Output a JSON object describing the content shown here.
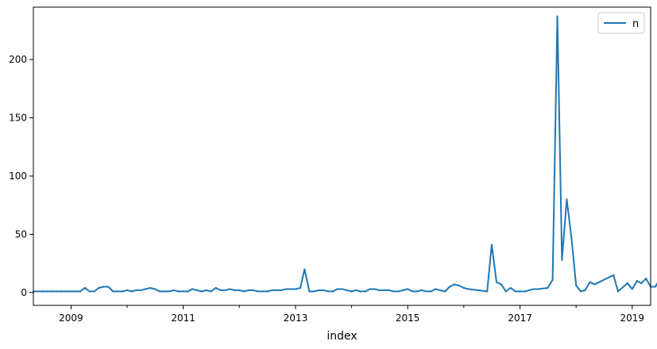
{
  "chart_data": {
    "type": "line",
    "xlabel": "index",
    "ylabel": "",
    "title": "",
    "xlim": [
      "2008-05-01",
      "2019-05-01"
    ],
    "ylim": [
      -11,
      245
    ],
    "x_tick_labels": [
      "2009",
      "2011",
      "2013",
      "2015",
      "2017",
      "2019"
    ],
    "y_ticks": [
      0,
      50,
      100,
      150,
      200
    ],
    "legend": {
      "placement": "upper-right",
      "entries": [
        "n"
      ]
    },
    "grid": false,
    "series": [
      {
        "name": "n",
        "color": "#1f77b4",
        "points": [
          [
            "2008-05-01",
            1
          ],
          [
            "2008-06-01",
            1
          ],
          [
            "2008-07-01",
            1
          ],
          [
            "2008-08-01",
            1
          ],
          [
            "2008-09-01",
            1
          ],
          [
            "2008-10-01",
            1
          ],
          [
            "2008-11-01",
            1
          ],
          [
            "2008-12-01",
            1
          ],
          [
            "2009-01-01",
            1
          ],
          [
            "2009-02-01",
            1
          ],
          [
            "2009-03-01",
            1
          ],
          [
            "2009-04-01",
            4
          ],
          [
            "2009-05-01",
            1
          ],
          [
            "2009-06-01",
            1
          ],
          [
            "2009-07-01",
            4
          ],
          [
            "2009-08-01",
            5
          ],
          [
            "2009-09-01",
            5
          ],
          [
            "2009-10-01",
            1
          ],
          [
            "2009-11-01",
            1
          ],
          [
            "2009-12-01",
            1
          ],
          [
            "2010-01-01",
            2
          ],
          [
            "2010-02-01",
            1
          ],
          [
            "2010-03-01",
            2
          ],
          [
            "2010-04-01",
            2
          ],
          [
            "2010-05-01",
            3
          ],
          [
            "2010-06-01",
            4
          ],
          [
            "2010-07-01",
            3
          ],
          [
            "2010-08-01",
            1
          ],
          [
            "2010-09-01",
            1
          ],
          [
            "2010-10-01",
            1
          ],
          [
            "2010-11-01",
            2
          ],
          [
            "2010-12-01",
            1
          ],
          [
            "2011-01-01",
            1
          ],
          [
            "2011-02-01",
            1
          ],
          [
            "2011-03-01",
            3
          ],
          [
            "2011-04-01",
            2
          ],
          [
            "2011-05-01",
            1
          ],
          [
            "2011-06-01",
            2
          ],
          [
            "2011-07-01",
            1
          ],
          [
            "2011-08-01",
            4
          ],
          [
            "2011-09-01",
            2
          ],
          [
            "2011-10-01",
            2
          ],
          [
            "2011-11-01",
            3
          ],
          [
            "2011-12-01",
            2
          ],
          [
            "2012-01-01",
            2
          ],
          [
            "2012-02-01",
            1
          ],
          [
            "2012-03-01",
            2
          ],
          [
            "2012-04-01",
            2
          ],
          [
            "2012-05-01",
            1
          ],
          [
            "2012-06-01",
            1
          ],
          [
            "2012-07-01",
            1
          ],
          [
            "2012-08-01",
            2
          ],
          [
            "2012-09-01",
            2
          ],
          [
            "2012-10-01",
            2
          ],
          [
            "2012-11-01",
            3
          ],
          [
            "2012-12-01",
            3
          ],
          [
            "2013-01-01",
            3
          ],
          [
            "2013-02-01",
            4
          ],
          [
            "2013-03-01",
            20
          ],
          [
            "2013-04-01",
            1
          ],
          [
            "2013-05-01",
            1
          ],
          [
            "2013-06-01",
            2
          ],
          [
            "2013-07-01",
            2
          ],
          [
            "2013-08-01",
            1
          ],
          [
            "2013-09-01",
            1
          ],
          [
            "2013-10-01",
            3
          ],
          [
            "2013-11-01",
            3
          ],
          [
            "2013-12-01",
            2
          ],
          [
            "2014-01-01",
            1
          ],
          [
            "2014-02-01",
            2
          ],
          [
            "2014-03-01",
            1
          ],
          [
            "2014-04-01",
            1
          ],
          [
            "2014-05-01",
            3
          ],
          [
            "2014-06-01",
            3
          ],
          [
            "2014-07-01",
            2
          ],
          [
            "2014-08-01",
            2
          ],
          [
            "2014-09-01",
            2
          ],
          [
            "2014-10-01",
            1
          ],
          [
            "2014-11-01",
            1
          ],
          [
            "2014-12-01",
            2
          ],
          [
            "2015-01-01",
            3
          ],
          [
            "2015-02-01",
            1
          ],
          [
            "2015-03-01",
            1
          ],
          [
            "2015-04-01",
            2
          ],
          [
            "2015-05-01",
            1
          ],
          [
            "2015-06-01",
            1
          ],
          [
            "2015-07-01",
            3
          ],
          [
            "2015-08-01",
            2
          ],
          [
            "2015-09-01",
            1
          ],
          [
            "2015-10-01",
            5
          ],
          [
            "2015-11-01",
            7
          ],
          [
            "2015-12-01",
            6
          ],
          [
            "2016-01-01",
            4
          ],
          [
            "2016-02-01",
            3
          ],
          [
            "2016-04-01",
            2
          ],
          [
            "2016-06-01",
            1
          ],
          [
            "2016-07-01",
            41
          ],
          [
            "2016-08-01",
            9
          ],
          [
            "2016-09-01",
            7
          ],
          [
            "2016-10-01",
            1
          ],
          [
            "2016-11-01",
            4
          ],
          [
            "2016-12-01",
            1
          ],
          [
            "2017-01-01",
            1
          ],
          [
            "2017-02-01",
            1
          ],
          [
            "2017-03-01",
            2
          ],
          [
            "2017-04-01",
            3
          ],
          [
            "2017-05-01",
            3
          ],
          [
            "2017-07-01",
            4
          ],
          [
            "2017-08-01",
            11
          ],
          [
            "2017-09-01",
            237
          ],
          [
            "2017-10-01",
            28
          ],
          [
            "2017-11-01",
            80
          ],
          [
            "2017-12-01",
            48
          ],
          [
            "2018-01-01",
            6
          ],
          [
            "2018-02-01",
            1
          ],
          [
            "2018-03-01",
            2
          ],
          [
            "2018-04-01",
            9
          ],
          [
            "2018-05-01",
            7
          ],
          [
            "2018-09-01",
            15
          ],
          [
            "2018-10-01",
            1
          ],
          [
            "2018-12-01",
            8
          ],
          [
            "2019-01-01",
            3
          ],
          [
            "2019-02-01",
            10
          ],
          [
            "2019-03-01",
            8
          ],
          [
            "2019-04-01",
            12
          ],
          [
            "2019-05-01",
            5
          ],
          [
            "2019-06-01",
            5
          ],
          [
            "2019-07-01",
            12
          ]
        ]
      }
    ]
  }
}
